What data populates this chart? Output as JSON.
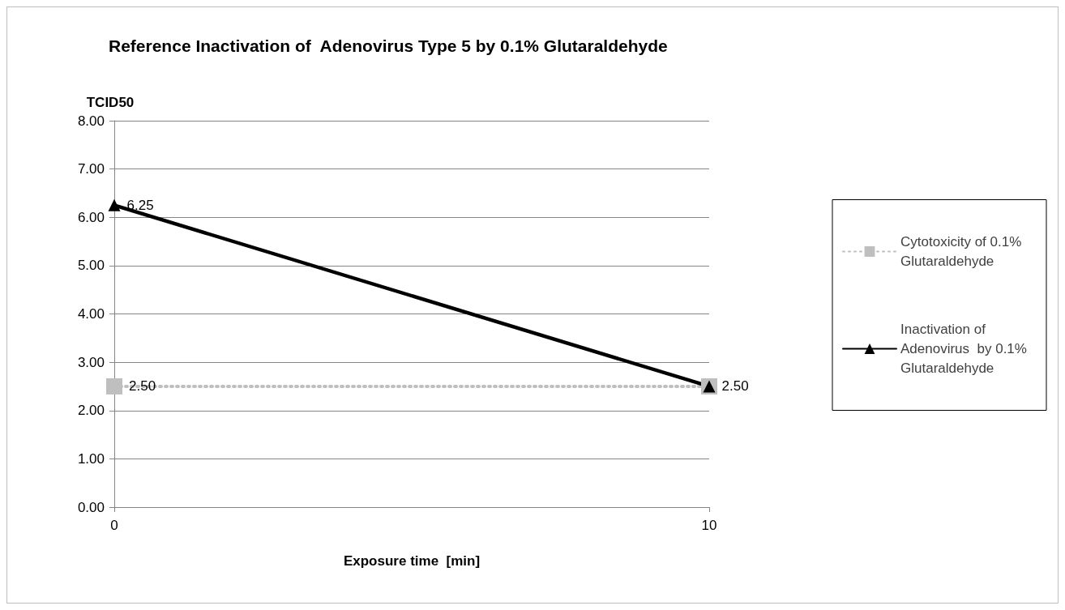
{
  "chart_data": {
    "type": "line",
    "title": "Reference Inactivation of  Adenovirus Type 5 by 0.1% Glutaraldehyde",
    "xlabel": "Exposure time  [min]",
    "ylabel": "TCID50",
    "x": [
      0,
      10
    ],
    "xlim": [
      0,
      10
    ],
    "xticks": [
      0,
      10
    ],
    "ylim": [
      0,
      8
    ],
    "yticks": [
      {
        "value": 0,
        "label": "0.00"
      },
      {
        "value": 1,
        "label": "1.00"
      },
      {
        "value": 2,
        "label": "2.00"
      },
      {
        "value": 3,
        "label": "3.00"
      },
      {
        "value": 4,
        "label": "4.00"
      },
      {
        "value": 5,
        "label": "5.00"
      },
      {
        "value": 6,
        "label": "6.00"
      },
      {
        "value": 7,
        "label": "7.00"
      },
      {
        "value": 8,
        "label": "8.00"
      }
    ],
    "grid": "y",
    "legend": "right",
    "series": [
      {
        "name": "Cytotoxicity of 0.1% Glutaraldehyde",
        "color": "#bfbfbf",
        "values": [
          2.5,
          2.5
        ],
        "marker": "square",
        "line_style": "dotted",
        "value_labels": [
          "2.50",
          null
        ]
      },
      {
        "name": "Inactivation of Adenovirus  by 0.1% Glutaraldehyde",
        "color": "#000000",
        "values": [
          6.25,
          2.5
        ],
        "marker": "triangle",
        "line_style": "solid",
        "value_labels": [
          "6.25",
          "2.50"
        ]
      }
    ]
  }
}
